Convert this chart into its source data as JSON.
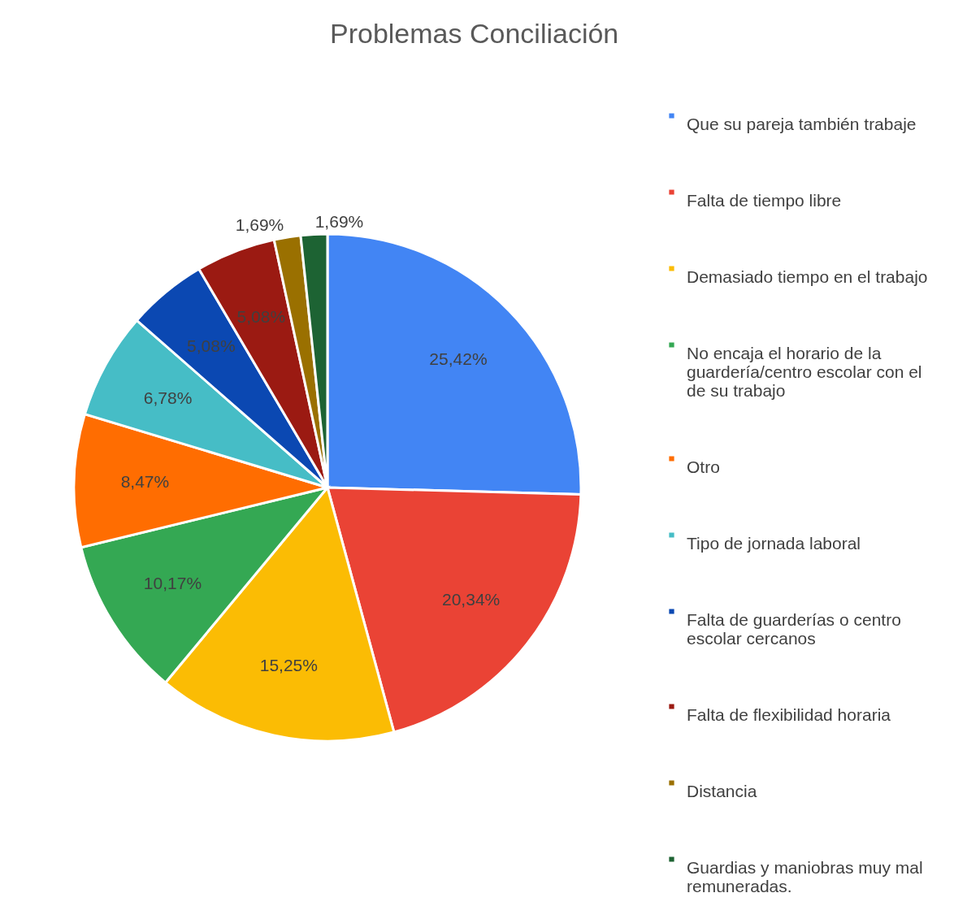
{
  "chart_data": {
    "type": "pie",
    "title": "Problemas Conciliación",
    "categories": [
      "Que su pareja también trabaje",
      "Falta de tiempo libre",
      "Demasiado tiempo en el trabajo",
      "No encaja el horario de la guardería/centro escolar con el de su trabajo",
      "Otro",
      "Tipo de jornada laboral",
      "Falta de guarderías o centro escolar cercanos",
      "Falta de flexibilidad horaria",
      "Distancia",
      "Guardias y maniobras muy mal remuneradas."
    ],
    "values": [
      25.42,
      20.34,
      15.25,
      10.17,
      8.47,
      6.78,
      5.08,
      5.08,
      1.69,
      1.69
    ],
    "value_labels": [
      "25,42%",
      "20,34%",
      "15,25%",
      "10,17%",
      "8,47%",
      "6,78%",
      "5,08%",
      "5,08%",
      "1,69%",
      "1,69%"
    ],
    "colors": [
      "#4285f4",
      "#ea4335",
      "#fbbc04",
      "#34a853",
      "#ff6d01",
      "#46bdc6",
      "#0b48b2",
      "#9b1a12",
      "#9a7000",
      "#1d6333"
    ],
    "legend": "right"
  }
}
